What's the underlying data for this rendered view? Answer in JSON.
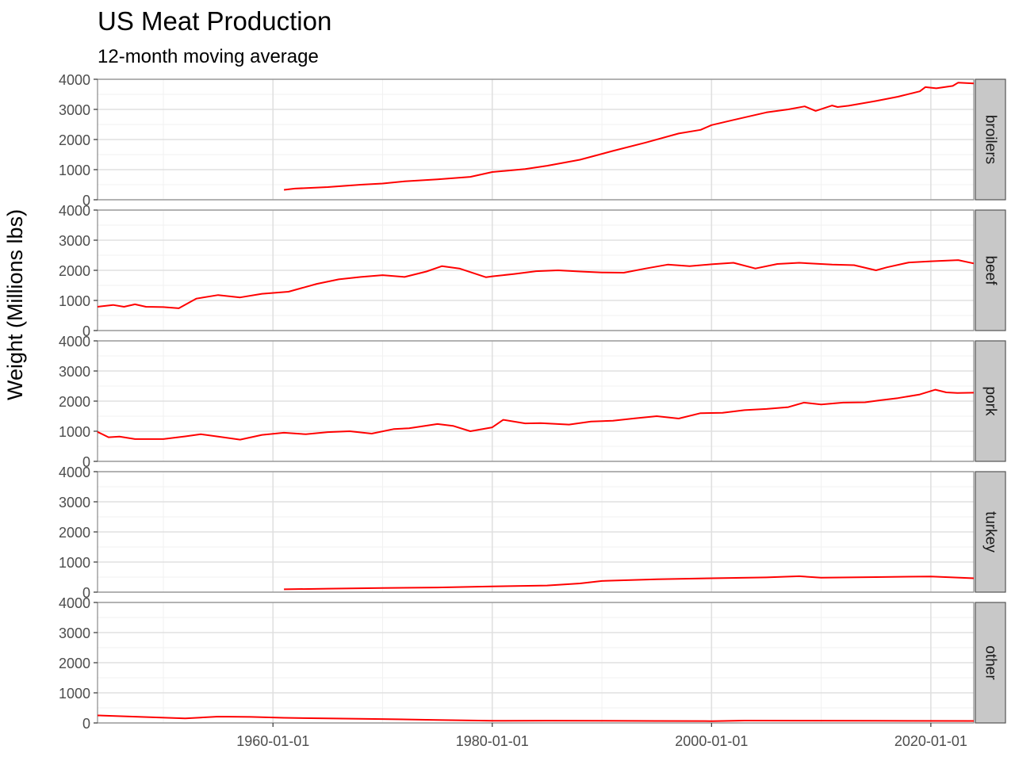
{
  "chart_data": {
    "type": "line",
    "title": "US Meat Production",
    "subtitle": "12-month moving average",
    "xlabel": "",
    "ylabel": "Weight (Millions lbs)",
    "line_color": "#ff0000",
    "strip_fill": "#c8c8c8",
    "grid": true,
    "facets": [
      "broilers",
      "beef",
      "pork",
      "turkey",
      "other"
    ],
    "ylim": [
      0,
      4000
    ],
    "y_ticks": [
      0,
      1000,
      2000,
      3000,
      4000
    ],
    "xlim": [
      "1944-01-01",
      "2023-12-01"
    ],
    "x_ticks": [
      "1960-01-01",
      "1980-01-01",
      "2000-01-01",
      "2020-01-01"
    ],
    "series": [
      {
        "name": "broilers",
        "x": [
          "1961-01",
          "1962-01",
          "1965-01",
          "1968-01",
          "1970-01",
          "1972-01",
          "1975-01",
          "1978-01",
          "1980-01",
          "1983-01",
          "1985-01",
          "1988-01",
          "1991-01",
          "1994-01",
          "1997-01",
          "1999-01",
          "2000-01",
          "2002-01",
          "2005-01",
          "2007-01",
          "2008-07",
          "2009-07",
          "2011-01",
          "2011-07",
          "2012-07",
          "2015-01",
          "2017-01",
          "2019-01",
          "2019-07",
          "2020-07",
          "2022-01",
          "2022-07",
          "2023-12"
        ],
        "values": [
          330,
          370,
          420,
          500,
          540,
          610,
          680,
          760,
          920,
          1020,
          1130,
          1330,
          1620,
          1900,
          2200,
          2320,
          2480,
          2650,
          2900,
          3000,
          3100,
          2950,
          3130,
          3080,
          3120,
          3280,
          3420,
          3600,
          3740,
          3700,
          3780,
          3890,
          3860
        ]
      },
      {
        "name": "beef",
        "x": [
          "1944-01",
          "1945-06",
          "1946-06",
          "1947-06",
          "1948-06",
          "1950-01",
          "1951-06",
          "1953-01",
          "1955-01",
          "1957-01",
          "1959-01",
          "1961-06",
          "1964-01",
          "1966-01",
          "1968-01",
          "1970-01",
          "1972-01",
          "1974-01",
          "1975-06",
          "1977-01",
          "1979-06",
          "1980-01",
          "1982-01",
          "1984-01",
          "1986-01",
          "1988-01",
          "1990-01",
          "1992-01",
          "1994-01",
          "1996-01",
          "1998-01",
          "2000-01",
          "2002-01",
          "2004-01",
          "2006-01",
          "2008-01",
          "2011-01",
          "2013-01",
          "2015-01",
          "2016-01",
          "2018-01",
          "2020-01",
          "2022-07",
          "2023-12"
        ],
        "values": [
          790,
          850,
          790,
          870,
          790,
          780,
          740,
          1060,
          1180,
          1100,
          1220,
          1290,
          1550,
          1700,
          1780,
          1840,
          1780,
          1960,
          2140,
          2060,
          1770,
          1800,
          1880,
          1970,
          2000,
          1960,
          1930,
          1920,
          2060,
          2190,
          2140,
          2200,
          2250,
          2060,
          2210,
          2250,
          2190,
          2170,
          2000,
          2100,
          2260,
          2300,
          2340,
          2230
        ]
      },
      {
        "name": "pork",
        "x": [
          "1944-01",
          "1945-01",
          "1946-01",
          "1947-06",
          "1950-01",
          "1952-01",
          "1953-06",
          "1955-01",
          "1957-01",
          "1959-01",
          "1961-01",
          "1963-01",
          "1965-01",
          "1967-01",
          "1969-01",
          "1971-01",
          "1972-06",
          "1975-01",
          "1976-06",
          "1978-01",
          "1980-01",
          "1981-01",
          "1983-01",
          "1984-06",
          "1987-01",
          "1989-01",
          "1991-01",
          "1993-01",
          "1995-01",
          "1997-01",
          "1999-01",
          "2001-01",
          "2003-01",
          "2005-01",
          "2007-01",
          "2008-06",
          "2010-01",
          "2012-01",
          "2014-01",
          "2015-06",
          "2017-01",
          "2019-01",
          "2020-06",
          "2021-06",
          "2022-06",
          "2023-12"
        ],
        "values": [
          980,
          800,
          820,
          740,
          740,
          830,
          900,
          820,
          720,
          880,
          950,
          900,
          970,
          1000,
          920,
          1070,
          1100,
          1240,
          1180,
          1000,
          1130,
          1380,
          1260,
          1270,
          1220,
          1320,
          1350,
          1430,
          1500,
          1420,
          1600,
          1610,
          1700,
          1740,
          1800,
          1950,
          1890,
          1950,
          1960,
          2030,
          2100,
          2220,
          2380,
          2290,
          2270,
          2280
        ]
      },
      {
        "name": "turkey",
        "x": [
          "1961-01",
          "1965-01",
          "1970-01",
          "1975-01",
          "1980-01",
          "1985-01",
          "1988-01",
          "1990-01",
          "1995-01",
          "2000-01",
          "2005-01",
          "2008-01",
          "2010-01",
          "2015-01",
          "2020-01",
          "2022-01",
          "2023-12"
        ],
        "values": [
          95,
          115,
          140,
          155,
          190,
          220,
          290,
          370,
          430,
          460,
          490,
          530,
          480,
          500,
          520,
          490,
          460
        ]
      },
      {
        "name": "other",
        "x": [
          "1944-01",
          "1948-01",
          "1952-01",
          "1955-01",
          "1958-01",
          "1961-01",
          "1965-01",
          "1970-01",
          "1975-01",
          "1980-01",
          "1985-01",
          "1990-01",
          "1995-01",
          "2000-01",
          "2003-01",
          "2008-01",
          "2015-01",
          "2023-12"
        ],
        "values": [
          250,
          200,
          150,
          210,
          200,
          170,
          150,
          130,
          100,
          70,
          75,
          70,
          65,
          60,
          80,
          75,
          70,
          65
        ]
      }
    ]
  }
}
